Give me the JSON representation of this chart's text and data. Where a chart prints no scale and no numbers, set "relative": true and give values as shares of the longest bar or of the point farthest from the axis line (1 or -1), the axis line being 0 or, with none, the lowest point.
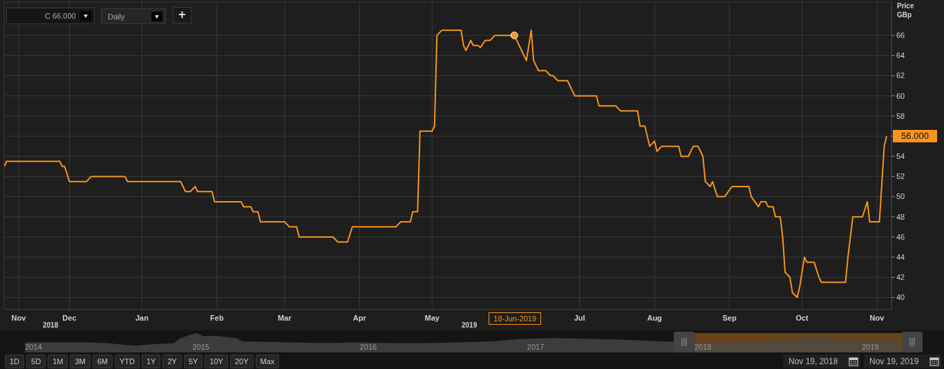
{
  "chart_data": [
    {
      "type": "line",
      "ylabel": "Price GBp",
      "grid": true,
      "x": [
        "2018-11-19",
        "2018-11-20",
        "2018-12-12",
        "2018-12-13",
        "2018-12-14",
        "2018-12-16",
        "2018-12-23",
        "2018-12-25",
        "2019-01-08",
        "2019-01-09",
        "2019-01-31",
        "2019-02-02",
        "2019-02-04",
        "2019-02-06",
        "2019-02-07",
        "2019-02-13",
        "2019-02-14",
        "2019-02-25",
        "2019-02-26",
        "2019-03-01",
        "2019-03-02",
        "2019-03-04",
        "2019-03-05",
        "2019-03-15",
        "2019-03-17",
        "2019-03-20",
        "2019-03-21",
        "2019-04-04",
        "2019-04-06",
        "2019-04-10",
        "2019-04-12",
        "2019-04-30",
        "2019-05-02",
        "2019-05-06",
        "2019-05-07",
        "2019-05-09",
        "2019-05-10",
        "2019-05-15",
        "2019-05-16",
        "2019-05-17",
        "2019-05-19",
        "2019-05-27",
        "2019-05-28",
        "2019-05-29",
        "2019-05-31",
        "2019-06-01",
        "2019-06-03",
        "2019-06-04",
        "2019-06-06",
        "2019-06-08",
        "2019-06-10",
        "2019-06-18",
        "2019-06-21",
        "2019-06-23",
        "2019-06-25",
        "2019-06-26",
        "2019-06-28",
        "2019-07-01",
        "2019-07-03",
        "2019-07-04",
        "2019-07-06",
        "2019-07-10",
        "2019-07-12",
        "2019-07-13",
        "2019-07-22",
        "2019-07-23",
        "2019-07-30",
        "2019-08-01",
        "2019-08-08",
        "2019-08-09",
        "2019-08-11",
        "2019-08-13",
        "2019-08-15",
        "2019-08-16",
        "2019-08-18",
        "2019-08-25",
        "2019-08-26",
        "2019-08-29",
        "2019-08-31",
        "2019-09-02",
        "2019-09-04",
        "2019-09-05",
        "2019-09-07",
        "2019-09-08",
        "2019-09-10",
        "2019-09-13",
        "2019-09-16",
        "2019-09-23",
        "2019-09-24",
        "2019-09-27",
        "2019-09-28",
        "2019-09-30",
        "2019-10-01",
        "2019-10-03",
        "2019-10-04",
        "2019-10-06",
        "2019-10-07",
        "2019-10-08",
        "2019-10-10",
        "2019-10-11",
        "2019-10-13",
        "2019-10-14",
        "2019-10-16",
        "2019-10-17",
        "2019-10-20",
        "2019-10-22",
        "2019-10-23",
        "2019-11-02",
        "2019-11-03",
        "2019-11-05",
        "2019-11-09",
        "2019-11-11",
        "2019-11-12",
        "2019-11-16",
        "2019-11-18",
        "2019-11-19"
      ],
      "series": [
        {
          "color": "#f7941d",
          "values": [
            53,
            53.5,
            53.5,
            53,
            53,
            51.5,
            51.5,
            52,
            52,
            51.5,
            51.5,
            50.5,
            50.5,
            51,
            50.5,
            50.5,
            49.5,
            49.5,
            49,
            49,
            48.5,
            48.5,
            47.5,
            47.5,
            47,
            47,
            46,
            46,
            45.5,
            45.5,
            47,
            47,
            47.5,
            47.5,
            48.5,
            48.5,
            56.5,
            56.5,
            57,
            66,
            66.5,
            66.5,
            65,
            64.5,
            65.5,
            65,
            65,
            64.8,
            65.5,
            65.5,
            66,
            66,
            64.5,
            63.5,
            66.5,
            63.5,
            62.5,
            62.5,
            62,
            62,
            61.5,
            61.5,
            60.5,
            60,
            60,
            59,
            59,
            58.5,
            58.5,
            57,
            57,
            55,
            55.5,
            54.5,
            55,
            55,
            54,
            54,
            55,
            55,
            54,
            51.5,
            51,
            51.5,
            50,
            50,
            51,
            51,
            50,
            49,
            49.5,
            49.5,
            49,
            49,
            48,
            48,
            46,
            42.5,
            42,
            40.5,
            40,
            41,
            44,
            43.5,
            43.5,
            42,
            41.5,
            41.5,
            44,
            48,
            48,
            49.5,
            47.5,
            47.5,
            55,
            56
          ]
        },
        {
          "type": "scatter",
          "color": "#f7941d",
          "x": [
            "2019-06-18"
          ],
          "values": [
            66
          ]
        }
      ],
      "xlim": [
        "2018-11-19",
        "2019-11-21"
      ],
      "xticks": [
        {
          "value": "2018-11-25",
          "label": "Nov"
        },
        {
          "value": "2018-12-16",
          "label": "Dec"
        },
        {
          "value": "2019-01-15",
          "label": "Jan"
        },
        {
          "value": "2019-02-15",
          "label": "Feb"
        },
        {
          "value": "2019-03-15",
          "label": "Mar"
        },
        {
          "value": "2019-04-15",
          "label": "Apr"
        },
        {
          "value": "2019-05-15",
          "label": "May"
        },
        {
          "value": "2019-07-15",
          "label": "Jul"
        },
        {
          "value": "2019-08-15",
          "label": "Aug"
        },
        {
          "value": "2019-09-15",
          "label": "Sep"
        },
        {
          "value": "2019-10-15",
          "label": "Oct"
        },
        {
          "value": "2019-11-15",
          "label": "Nov"
        }
      ],
      "ylim": [
        38.8,
        69.3
      ],
      "yticks": [
        40,
        42,
        44,
        46,
        48,
        50,
        52,
        54,
        {
          "value": 56,
          "label": null
        },
        58,
        60,
        62,
        64,
        66
      ],
      "annotations": [
        "C 66.000",
        "Daily",
        "+",
        "2018",
        "2019",
        "56.000",
        "18-Jun-2019"
      ]
    },
    {
      "type": "area",
      "relative": true,
      "color": "#4a4a4a",
      "x": [
        2013.95,
        2014.32,
        2014.44,
        2014.6,
        2014.72,
        2014.84,
        2014.87,
        2014.92,
        2014.97,
        2015.02,
        2015.08,
        2015.17,
        2015.21,
        2015.25,
        2015.53,
        2015.77,
        2015.93,
        2016.14,
        2016.34,
        2016.54,
        2016.74,
        2016.91,
        2017.11,
        2017.35,
        2017.55,
        2017.76,
        2017.96,
        2018.16,
        2018.36,
        2018.61,
        2018.77,
        2018.97,
        2019.17
      ],
      "values": [
        0.52,
        0.52,
        0.48,
        0.35,
        0.43,
        0.48,
        0.7,
        0.87,
        1,
        0.83,
        0.87,
        0.78,
        0.74,
        0.57,
        0.52,
        0.48,
        0.52,
        0.48,
        0.48,
        0.52,
        0.57,
        0.7,
        0.74,
        0.7,
        0.65,
        0.57,
        0.52,
        0.52,
        0.57,
        0.78,
        0.74,
        0.65,
        0.65
      ],
      "xlim": [
        2013.8,
        2019.44
      ],
      "xticks": [
        2014,
        2015,
        2016,
        2017,
        2018,
        2019
      ],
      "bands": [
        {
          "axis": "x",
          "from": 2017.95,
          "to": 2019.19,
          "color": "#8a5318"
        }
      ],
      "annotations": [
        "1D",
        "5D",
        "1M",
        "3M",
        "6M",
        "YTD",
        "1Y",
        "2Y",
        "5Y",
        "10Y",
        "20Y",
        "Max",
        "Nov 19, 2018",
        "Nov 19, 2019"
      ]
    }
  ]
}
